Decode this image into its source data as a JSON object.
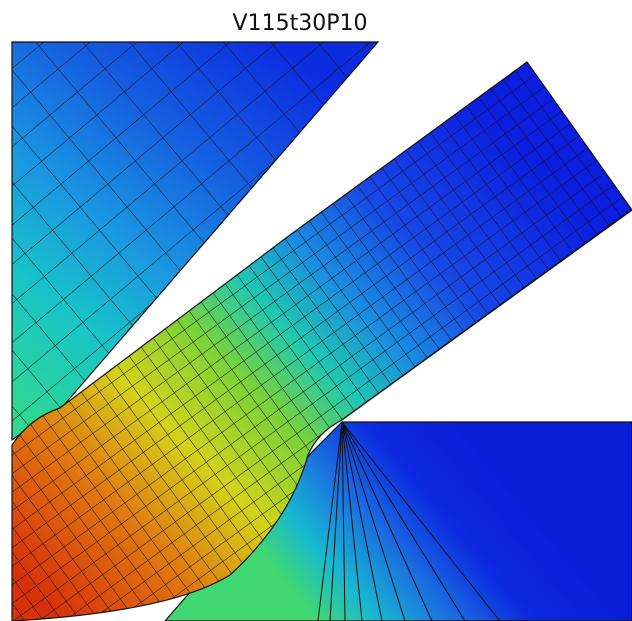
{
  "title": "V115t30P10"
}
